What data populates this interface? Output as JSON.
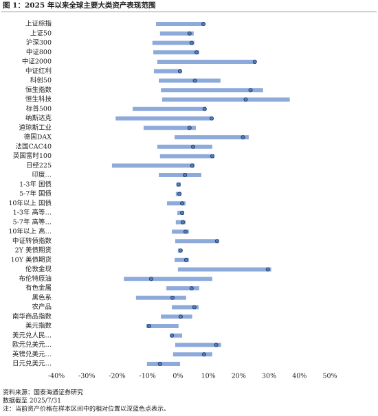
{
  "chart_data": {
    "type": "range",
    "title": "图 1：2025 年以来全球主要大类资产表现范围",
    "categories": [
      "上证综指",
      "上证50",
      "沪深300",
      "中证800",
      "中证2000",
      "中证红利",
      "科创50",
      "恒生指数",
      "恒生科技",
      "标普500",
      "纳斯达克",
      "道琼斯工业",
      "德国DAX",
      "法国CAC40",
      "英国富时100",
      "日经225",
      "印度…",
      "1-3年 国债",
      "5-7年 国债",
      "10年以上 国债",
      "1-3年 高等…",
      "5-7年 高等…",
      "10年以上 高…",
      "中证转债指数",
      "2Y 美债期货",
      "10Y 美债期货",
      "伦敦金现",
      "布伦特原油",
      "有色金属",
      "黑色系",
      "农产品",
      "南华商品指数",
      "美元指数",
      "美元兑人民…",
      "欧元兑美元…",
      "英镑兑美元…",
      "日元兑美元…"
    ],
    "low": [
      -7.2,
      -5.9,
      -8.4,
      -8.1,
      -6.8,
      -7.9,
      -6.3,
      -5.6,
      -5.2,
      -14.9,
      -20.5,
      -11.3,
      -1.1,
      -6.8,
      -5.9,
      -21.7,
      -6.3,
      -0.5,
      -0.7,
      -3.6,
      -0.2,
      -0.7,
      -2.0,
      -0.9,
      0,
      -1.1,
      0,
      -17.8,
      -3.8,
      -13.8,
      -2.0,
      -5.6,
      -10.4,
      -2.3,
      -0.9,
      -1.6,
      -10.2
    ],
    "high": [
      8.8,
      5.2,
      5.4,
      7.0,
      25.7,
      1.1,
      14.0,
      28.0,
      36.8,
      9.3,
      11.5,
      5.9,
      23.3,
      11.3,
      12.0,
      5.4,
      7.7,
      0.9,
      1.1,
      2.5,
      2.0,
      2.5,
      3.6,
      13.3,
      1.1,
      3.6,
      30.7,
      11.3,
      7.0,
      2.7,
      6.8,
      4.7,
      0.2,
      1.4,
      14.2,
      11.3,
      0.7
    ],
    "current": [
      8.4,
      3.8,
      4.5,
      6.1,
      25.3,
      0.7,
      5.6,
      23.9,
      22.3,
      8.8,
      11.1,
      3.8,
      21.4,
      5.0,
      11.3,
      4.7,
      2.3,
      0.2,
      0.5,
      1.4,
      1.4,
      1.6,
      2.5,
      12.9,
      0.9,
      2.7,
      29.6,
      -8.8,
      4.5,
      -1.8,
      5.4,
      0.9,
      -9.5,
      -2.0,
      12.6,
      8.6,
      -5.9
    ],
    "bar_color": "#8eaadb",
    "dot_color": "#4f81bd",
    "xlim": [
      -40,
      50
    ],
    "xticks": [
      {
        "value": -40,
        "label": "-40%"
      },
      {
        "value": -30,
        "label": "-30%"
      },
      {
        "value": -20,
        "label": "-20%"
      },
      {
        "value": -10,
        "label": "-10%"
      },
      {
        "value": 0,
        "label": "0%"
      },
      {
        "value": 10,
        "label": "10%"
      },
      {
        "value": 20,
        "label": "20%"
      },
      {
        "value": 30,
        "label": "30%"
      },
      {
        "value": 40,
        "label": "40%"
      },
      {
        "value": 50,
        "label": "50%"
      }
    ],
    "source": "资料来源：国泰海通证券研究",
    "date_note": "数据截至 2025/7/31",
    "note": "注：当前资产价格在样本区间中的相对位置以深蓝色点表示。"
  }
}
